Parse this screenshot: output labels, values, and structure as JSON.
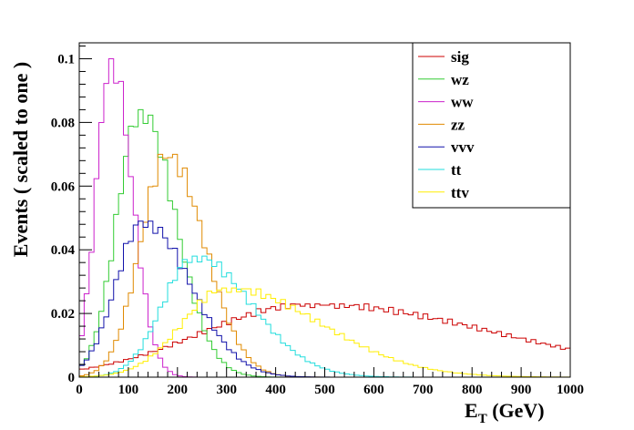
{
  "chart_data": {
    "type": "line",
    "style": "step-histogram",
    "title": "",
    "xlabel_main": "E",
    "xlabel_sub": "T",
    "xlabel_unit": " (GeV)",
    "ylabel": "Events  ( scaled to one )",
    "xlim": [
      0,
      1000
    ],
    "ylim": [
      0,
      0.105
    ],
    "xticks": [
      0,
      100,
      200,
      300,
      400,
      500,
      600,
      700,
      800,
      900,
      1000
    ],
    "xtick_labels": [
      "0",
      "100",
      "200",
      "300",
      "400",
      "500",
      "600",
      "700",
      "800",
      "900",
      "1000"
    ],
    "yticks": [
      0,
      0.02,
      0.04,
      0.06,
      0.08,
      0.1
    ],
    "ytick_labels": [
      "0",
      "0.02",
      "0.04",
      "0.06",
      "0.08",
      "0.1"
    ],
    "bin_width": 10,
    "legend_position": "top-right",
    "series": [
      {
        "name": "sig",
        "color": "#cc0000",
        "peak_x": 470,
        "peak_y": 0.023,
        "sigma_left": 220,
        "sigma_right": 380
      },
      {
        "name": "wz",
        "color": "#33cc33",
        "peak_x": 125,
        "peak_y": 0.084,
        "sigma_left": 48,
        "sigma_right": 70
      },
      {
        "name": "ww",
        "color": "#cc22cc",
        "peak_x": 65,
        "peak_y": 0.1,
        "sigma_left": 30,
        "sigma_right": 42
      },
      {
        "name": "zz",
        "color": "#e08a00",
        "peak_x": 180,
        "peak_y": 0.07,
        "sigma_left": 55,
        "sigma_right": 75
      },
      {
        "name": "vvv",
        "color": "#1111aa",
        "peak_x": 130,
        "peak_y": 0.049,
        "sigma_left": 55,
        "sigma_right": 95
      },
      {
        "name": "tt",
        "color": "#22dddd",
        "peak_x": 235,
        "peak_y": 0.038,
        "sigma_left": 65,
        "sigma_right": 115
      },
      {
        "name": "ttv",
        "color": "#ffee00",
        "peak_x": 300,
        "peak_y": 0.028,
        "sigma_left": 90,
        "sigma_right": 190
      }
    ]
  }
}
